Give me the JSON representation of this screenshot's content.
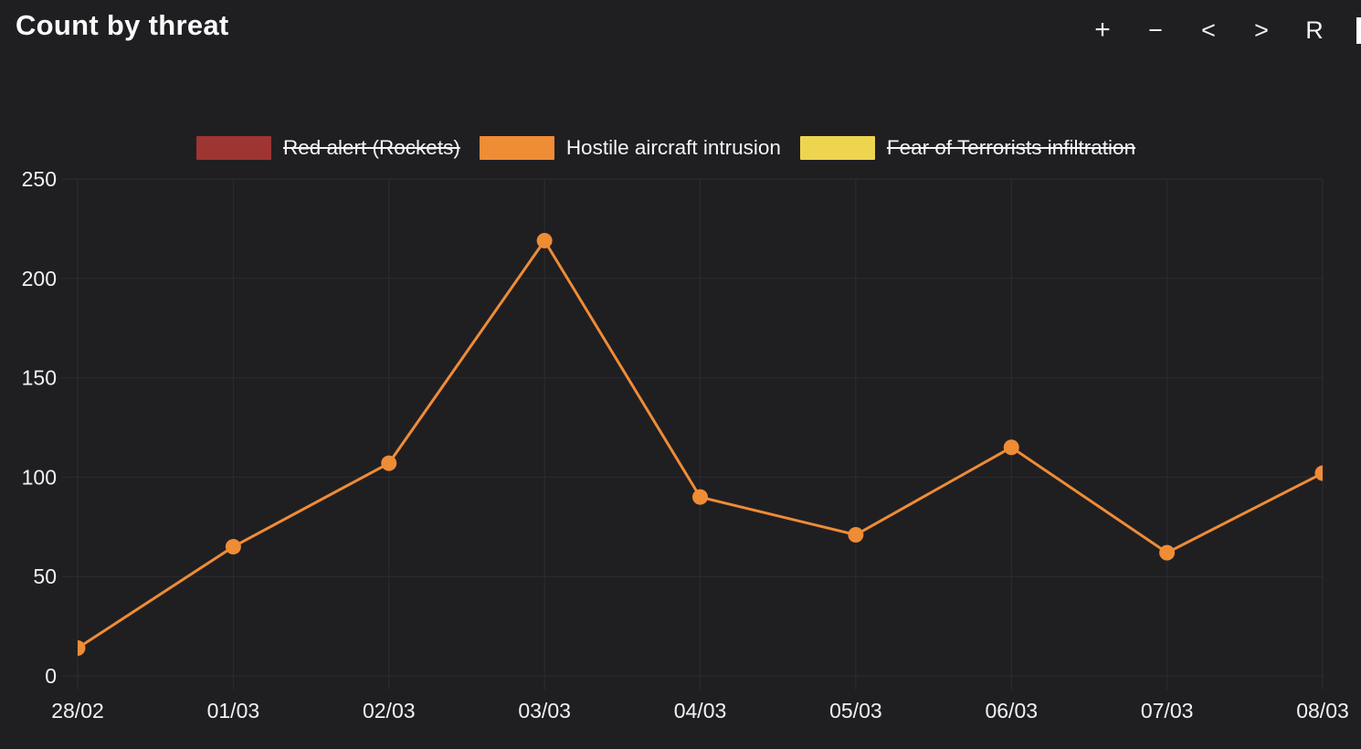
{
  "header": {
    "title": "Count by threat",
    "controls": [
      {
        "name": "zoom-in",
        "label": "+"
      },
      {
        "name": "zoom-out",
        "label": "−"
      },
      {
        "name": "pan-left",
        "label": "<"
      },
      {
        "name": "pan-right",
        "label": ">"
      },
      {
        "name": "reset",
        "label": "R"
      }
    ]
  },
  "legend": [
    {
      "label": "Red alert (Rockets)",
      "color": "#9e3533",
      "disabled": true
    },
    {
      "label": "Hostile aircraft intrusion",
      "color": "#ef8c36",
      "disabled": false
    },
    {
      "label": "Fear of Terrorists infiltration",
      "color": "#eed54f",
      "disabled": true
    }
  ],
  "chart_data": {
    "type": "line",
    "title": "Count by threat",
    "categories": [
      "28/02",
      "01/03",
      "02/03",
      "03/03",
      "04/03",
      "05/03",
      "06/03",
      "07/03",
      "08/03"
    ],
    "series": [
      {
        "name": "Red alert (Rockets)",
        "color": "#9e3533",
        "visible": false,
        "values": []
      },
      {
        "name": "Hostile aircraft intrusion",
        "color": "#ef8c36",
        "visible": true,
        "values": [
          14,
          65,
          107,
          219,
          90,
          71,
          115,
          62,
          102
        ]
      },
      {
        "name": "Fear of Terrorists infiltration",
        "color": "#eed54f",
        "visible": false,
        "values": []
      }
    ],
    "xlabel": "",
    "ylabel": "",
    "ylim": [
      0,
      250
    ],
    "yticks": [
      0,
      50,
      100,
      150,
      200,
      250
    ],
    "grid": true,
    "legend_position": "top",
    "markers": true
  },
  "colors": {
    "background": "#1f1f22",
    "gridline": "#2d2d30",
    "text": "#f2f2f2",
    "accent_orange": "#ef8c36",
    "accent_red": "#9e3533",
    "accent_yellow": "#eed54f"
  }
}
